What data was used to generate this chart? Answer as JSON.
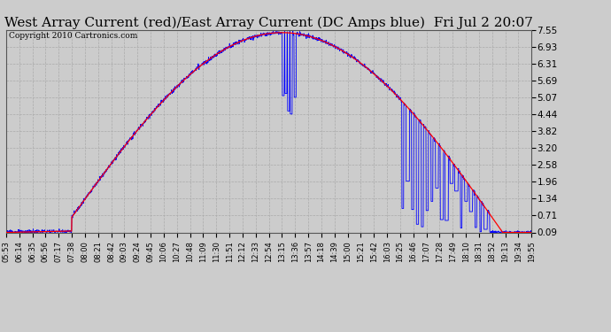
{
  "title": "West Array Current (red)/East Array Current (DC Amps blue)  Fri Jul 2 20:07",
  "copyright": "Copyright 2010 Cartronics.com",
  "yticks": [
    0.09,
    0.71,
    1.34,
    1.96,
    2.58,
    3.2,
    3.82,
    4.44,
    5.07,
    5.69,
    6.31,
    6.93,
    7.55
  ],
  "ylim": [
    0.09,
    7.55
  ],
  "xtick_labels": [
    "05:53",
    "06:14",
    "06:35",
    "06:56",
    "07:17",
    "07:38",
    "08:00",
    "08:21",
    "08:42",
    "09:03",
    "09:24",
    "09:45",
    "10:06",
    "10:27",
    "10:48",
    "11:09",
    "11:30",
    "11:51",
    "12:12",
    "12:33",
    "12:54",
    "13:15",
    "13:36",
    "13:57",
    "14:18",
    "14:39",
    "15:00",
    "15:21",
    "15:42",
    "16:03",
    "16:25",
    "16:46",
    "17:07",
    "17:28",
    "17:49",
    "18:10",
    "18:31",
    "18:52",
    "19:13",
    "19:34",
    "19:55"
  ],
  "bg_color": "#cccccc",
  "plot_bg": "#cccccc",
  "grid_color": "#aaaaaa",
  "red_color": "#ff0000",
  "blue_color": "#0000ff",
  "title_fontsize": 11,
  "copyright_fontsize": 6.5
}
